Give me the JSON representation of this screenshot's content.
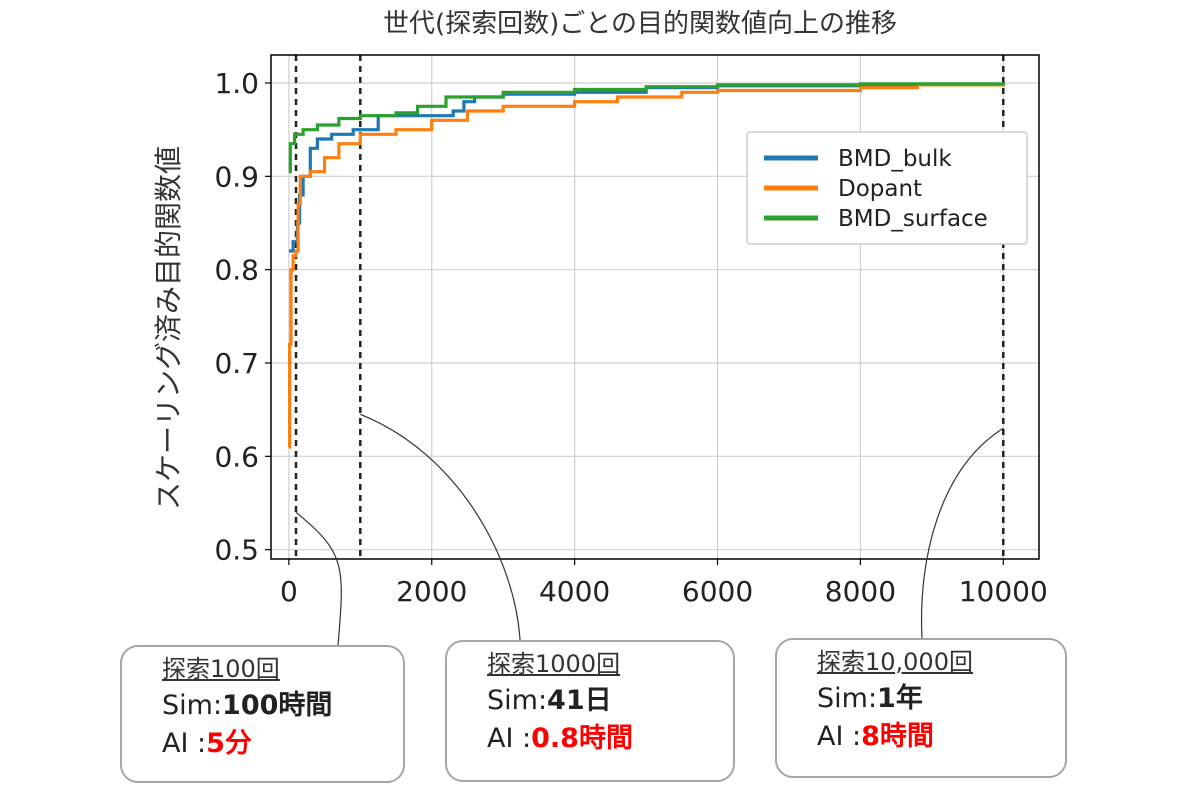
{
  "chart_data": {
    "type": "line",
    "title": "世代(探索回数)ごとの目的関数値向上の推移",
    "xlabel": "",
    "ylabel": "スケーリング済み目的関数値",
    "xlim": [
      -250,
      10500
    ],
    "ylim": [
      0.49,
      1.03
    ],
    "x_ticks": [
      0,
      2000,
      4000,
      6000,
      8000,
      10000
    ],
    "x_tick_labels": [
      "0",
      "2000",
      "4000",
      "6000",
      "8000",
      "10000"
    ],
    "y_ticks": [
      0.5,
      0.6,
      0.7,
      0.8,
      0.9,
      1.0
    ],
    "y_tick_labels": [
      "0.5",
      "0.6",
      "0.7",
      "0.8",
      "0.9",
      "1.0"
    ],
    "grid": true,
    "legend_position": "upper-right",
    "vlines": [
      100,
      1000,
      10000
    ],
    "series": [
      {
        "name": "BMD_bulk",
        "color": "#1f77b4",
        "points": [
          [
            0,
            0.82
          ],
          [
            60,
            0.83
          ],
          [
            120,
            0.85
          ],
          [
            150,
            0.88
          ],
          [
            200,
            0.9
          ],
          [
            300,
            0.93
          ],
          [
            400,
            0.94
          ],
          [
            600,
            0.945
          ],
          [
            900,
            0.95
          ],
          [
            1100,
            0.95
          ],
          [
            1250,
            0.965
          ],
          [
            1600,
            0.965
          ],
          [
            2000,
            0.965
          ],
          [
            2300,
            0.97
          ],
          [
            2450,
            0.98
          ],
          [
            2600,
            0.985
          ],
          [
            3000,
            0.988
          ],
          [
            4000,
            0.99
          ],
          [
            5000,
            0.995
          ],
          [
            6000,
            0.997
          ],
          [
            8000,
            0.998
          ],
          [
            10000,
            1.0
          ]
        ]
      },
      {
        "name": "Dopant",
        "color": "#ff7f0e",
        "points": [
          [
            0,
            0.61
          ],
          [
            10,
            0.72
          ],
          [
            30,
            0.8
          ],
          [
            60,
            0.815
          ],
          [
            100,
            0.82
          ],
          [
            130,
            0.87
          ],
          [
            160,
            0.9
          ],
          [
            300,
            0.905
          ],
          [
            500,
            0.92
          ],
          [
            700,
            0.935
          ],
          [
            1000,
            0.945
          ],
          [
            1500,
            0.95
          ],
          [
            2000,
            0.96
          ],
          [
            2500,
            0.97
          ],
          [
            3000,
            0.975
          ],
          [
            4000,
            0.98
          ],
          [
            4600,
            0.985
          ],
          [
            5500,
            0.99
          ],
          [
            6000,
            0.992
          ],
          [
            8000,
            0.995
          ],
          [
            8800,
            0.998
          ],
          [
            10000,
            1.0
          ]
        ]
      },
      {
        "name": "BMD_surface",
        "color": "#2ca02c",
        "points": [
          [
            0,
            0.905
          ],
          [
            20,
            0.935
          ],
          [
            80,
            0.945
          ],
          [
            200,
            0.95
          ],
          [
            400,
            0.955
          ],
          [
            700,
            0.962
          ],
          [
            1000,
            0.965
          ],
          [
            1500,
            0.968
          ],
          [
            1800,
            0.975
          ],
          [
            2200,
            0.985
          ],
          [
            3000,
            0.99
          ],
          [
            4000,
            0.993
          ],
          [
            5000,
            0.996
          ],
          [
            6000,
            0.998
          ],
          [
            8000,
            0.999
          ],
          [
            10000,
            1.0
          ]
        ]
      }
    ]
  },
  "callouts": [
    {
      "title": "探索100回",
      "sim_label": "Sim:",
      "sim_value": "100時間",
      "ai_label": "AI :",
      "ai_value": "5分"
    },
    {
      "title": "探索1000回",
      "sim_label": "Sim:",
      "sim_value": "41日",
      "ai_label": "AI :",
      "ai_value": "0.8時間"
    },
    {
      "title": "探索10,000回",
      "sim_label": "Sim:",
      "sim_value": "1年",
      "ai_label": "AI :",
      "ai_value": "8時間"
    }
  ]
}
